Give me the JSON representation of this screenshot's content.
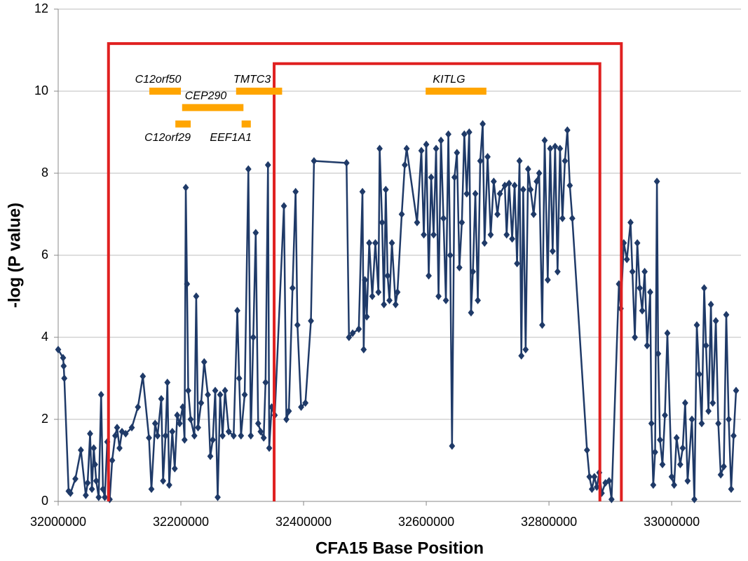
{
  "chart_data": {
    "type": "line",
    "x_label": "CFA15 Base Position",
    "y_label": "-log (P value)",
    "xlim": [
      32000000,
      33113000
    ],
    "ylim": [
      0,
      12
    ],
    "xticks": [
      32000000,
      32200000,
      32400000,
      32600000,
      32800000,
      33000000
    ],
    "yticks": [
      0,
      2,
      4,
      6,
      8,
      10,
      12
    ],
    "grid": true,
    "marker": "diamond",
    "x": [
      32000000,
      32008000,
      32009000,
      32010000,
      32017000,
      32020000,
      32028000,
      32037000,
      32045000,
      32048000,
      32052000,
      32055000,
      32058000,
      32060000,
      32062000,
      32066000,
      32070000,
      32073000,
      32076000,
      32080000,
      32084000,
      32088000,
      32093000,
      32096000,
      32100000,
      32104000,
      32110000,
      32120000,
      32130000,
      32138000,
      32148000,
      32152000,
      32158000,
      32162000,
      32168000,
      32171000,
      32175000,
      32178000,
      32181000,
      32186000,
      32190000,
      32194000,
      32198000,
      32203000,
      32206000,
      32208000,
      32210000,
      32212000,
      32216000,
      32222000,
      32225000,
      32228000,
      32233000,
      32238000,
      32244000,
      32248000,
      32252000,
      32256000,
      32260000,
      32264000,
      32268000,
      32272000,
      32278000,
      32286000,
      32292000,
      32295000,
      32298000,
      32304000,
      32310000,
      32314000,
      32318000,
      32322000,
      32326000,
      32330000,
      32335000,
      32338000,
      32342000,
      32344000,
      32348000,
      32353000,
      32368000,
      32372000,
      32376000,
      32382000,
      32387000,
      32390000,
      32396000,
      32403000,
      32412000,
      32417000,
      32470000,
      32474000,
      32480000,
      32490000,
      32496000,
      32498000,
      32500000,
      32503000,
      32507000,
      32512000,
      32517000,
      32522000,
      32524000,
      32528000,
      32531000,
      32534000,
      32537000,
      32540000,
      32544000,
      32550000,
      32553000,
      32560000,
      32565000,
      32568000,
      32585000,
      32592000,
      32596000,
      32600000,
      32604000,
      32608000,
      32612000,
      32616000,
      32620000,
      32624000,
      32628000,
      32632000,
      32636000,
      32639000,
      32642000,
      32646000,
      32650000,
      32654000,
      32658000,
      32662000,
      32666000,
      32670000,
      32673000,
      32676000,
      32680000,
      32684000,
      32688000,
      32692000,
      32695000,
      32700000,
      32705000,
      32710000,
      32716000,
      32720000,
      32728000,
      32731000,
      32735000,
      32740000,
      32744000,
      32748000,
      32752000,
      32755000,
      32758000,
      32762000,
      32766000,
      32770000,
      32775000,
      32780000,
      32784000,
      32789000,
      32793000,
      32798000,
      32802000,
      32806000,
      32810000,
      32814000,
      32818000,
      32822000,
      32826000,
      32830000,
      32834000,
      32838000,
      32862000,
      32866000,
      32870000,
      32874000,
      32878000,
      32882000,
      32886000,
      32892000,
      32898000,
      32902000,
      32914000,
      32917000,
      32922000,
      32927000,
      32933000,
      32936000,
      32940000,
      32944000,
      32948000,
      32952000,
      32956000,
      32960000,
      32965000,
      32967000,
      32970000,
      32973000,
      32976000,
      32978000,
      32981000,
      32985000,
      32989000,
      32993000,
      33000000,
      33004000,
      33008000,
      33014000,
      33018000,
      33022000,
      33026000,
      33033000,
      33037000,
      33041000,
      33045000,
      33049000,
      33053000,
      33056000,
      33060000,
      33064000,
      33067000,
      33072000,
      33076000,
      33080000,
      33085000,
      33089000,
      33093000,
      33097000,
      33101000,
      33105000
    ],
    "series": [
      {
        "color": "#1f3a68",
        "values": [
          3.7,
          3.5,
          3.3,
          3.0,
          0.25,
          0.2,
          0.55,
          1.25,
          0.15,
          0.45,
          1.65,
          0.3,
          1.3,
          0.9,
          0.5,
          0.1,
          2.6,
          0.3,
          0.1,
          1.45,
          0.05,
          1.0,
          1.6,
          1.8,
          1.3,
          1.7,
          1.65,
          1.8,
          2.3,
          3.05,
          1.55,
          0.3,
          1.9,
          1.6,
          2.5,
          0.5,
          1.6,
          2.9,
          0.4,
          1.7,
          0.8,
          2.1,
          1.9,
          2.3,
          1.5,
          7.65,
          5.3,
          2.7,
          2.0,
          1.6,
          5.0,
          1.8,
          2.4,
          3.4,
          2.6,
          1.1,
          1.5,
          2.7,
          0.1,
          2.6,
          1.6,
          2.7,
          1.7,
          1.6,
          4.65,
          3.0,
          1.6,
          2.6,
          8.1,
          1.6,
          4.0,
          6.55,
          1.9,
          1.7,
          1.55,
          2.9,
          8.2,
          1.3,
          2.3,
          2.1,
          7.2,
          2.0,
          2.2,
          5.2,
          7.55,
          4.3,
          2.3,
          2.4,
          4.4,
          8.3,
          8.25,
          4.0,
          4.1,
          4.2,
          7.55,
          3.7,
          5.4,
          4.5,
          6.3,
          5.0,
          6.3,
          5.1,
          8.6,
          6.8,
          4.8,
          7.6,
          5.5,
          4.9,
          6.3,
          4.8,
          5.1,
          7.0,
          8.2,
          8.6,
          6.8,
          8.55,
          6.5,
          8.7,
          5.5,
          7.9,
          6.5,
          8.6,
          5.0,
          8.8,
          6.9,
          4.9,
          8.95,
          6.0,
          1.35,
          7.9,
          8.5,
          5.7,
          6.8,
          8.95,
          7.5,
          9.0,
          4.6,
          5.6,
          7.5,
          4.9,
          8.3,
          9.2,
          6.3,
          8.4,
          6.5,
          7.8,
          7.0,
          7.5,
          7.7,
          6.5,
          7.75,
          6.4,
          7.7,
          5.8,
          8.3,
          3.55,
          7.6,
          3.7,
          8.1,
          7.6,
          7.0,
          7.8,
          8.0,
          4.3,
          8.8,
          5.4,
          8.6,
          6.1,
          8.65,
          5.6,
          8.6,
          6.9,
          8.3,
          9.05,
          7.7,
          6.9,
          1.25,
          0.6,
          0.3,
          0.6,
          0.35,
          0.7,
          0.2,
          0.45,
          0.5,
          0.05,
          5.3,
          4.7,
          6.3,
          5.9,
          6.8,
          5.6,
          4.0,
          6.3,
          5.2,
          4.65,
          5.6,
          3.8,
          5.1,
          1.9,
          0.4,
          1.2,
          7.8,
          3.6,
          1.5,
          0.9,
          2.1,
          4.1,
          0.6,
          0.4,
          1.55,
          0.9,
          1.3,
          2.4,
          0.5,
          2.0,
          0.05,
          4.3,
          3.1,
          1.9,
          5.2,
          3.8,
          2.2,
          4.8,
          2.4,
          4.4,
          1.9,
          0.65,
          0.85,
          4.55,
          2.0,
          0.3,
          1.6,
          2.7
        ]
      }
    ],
    "regions": [
      {
        "color": "#e02020",
        "x": [
          32082000,
          32918000
        ],
        "top": 11.16
      },
      {
        "color": "#e02020",
        "x": [
          32352000,
          32883000
        ],
        "top": 10.67
      }
    ],
    "genes": {
      "color": "#ffa500",
      "items": [
        {
          "name": "C12orf50",
          "start": 32148600,
          "end": 32200000,
          "y": 10.0
        },
        {
          "name": "CEP290",
          "start": 32202000,
          "end": 32302000,
          "y": 9.6
        },
        {
          "name": "TMTC3",
          "start": 32290000,
          "end": 32365000,
          "y": 10.0
        },
        {
          "name": "C12orf29",
          "start": 32191000,
          "end": 32216000,
          "y": 9.2
        },
        {
          "name": "EEF1A1",
          "start": 32299000,
          "end": 32314000,
          "y": 9.2
        },
        {
          "name": "KITLG",
          "start": 32599000,
          "end": 32698000,
          "y": 10.0
        }
      ]
    }
  }
}
